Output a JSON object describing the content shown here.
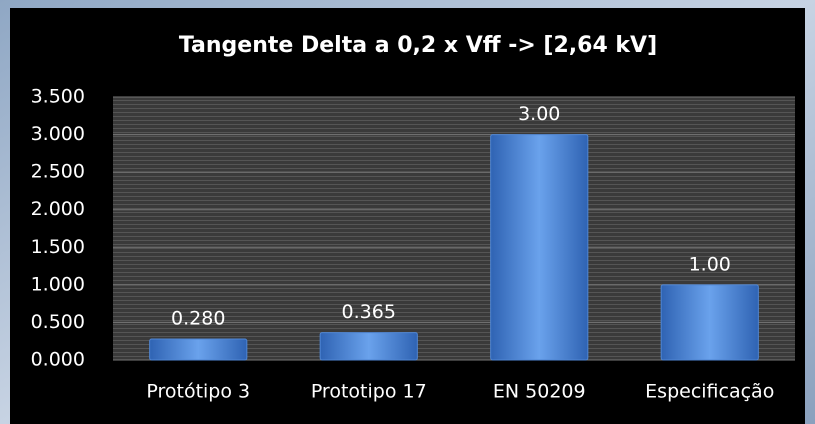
{
  "chart_data": {
    "type": "bar",
    "title": "Tangente Delta a 0,2 x Vff -> [2,64 kV]",
    "categories": [
      "Protótipo 3",
      "Prototipo 17",
      "EN 50209",
      "Especificação"
    ],
    "values": [
      0.28,
      0.365,
      3,
      1
    ],
    "value_labels": [
      "0.280",
      "0.365",
      "3.00",
      "1.00"
    ],
    "color": "#4f86d4",
    "ylim": [
      0,
      3.5
    ],
    "yticks": [
      {
        "value": 0,
        "label": "0.000"
      },
      {
        "value": 0.5,
        "label": "0.500"
      },
      {
        "value": 1,
        "label": "1.000"
      },
      {
        "value": 1.5,
        "label": "1.500"
      },
      {
        "value": 2,
        "label": "2.000"
      },
      {
        "value": 2.5,
        "label": "2.500"
      },
      {
        "value": 3,
        "label": "3.000"
      },
      {
        "value": 3.5,
        "label": "3.500"
      }
    ],
    "grid": true
  }
}
